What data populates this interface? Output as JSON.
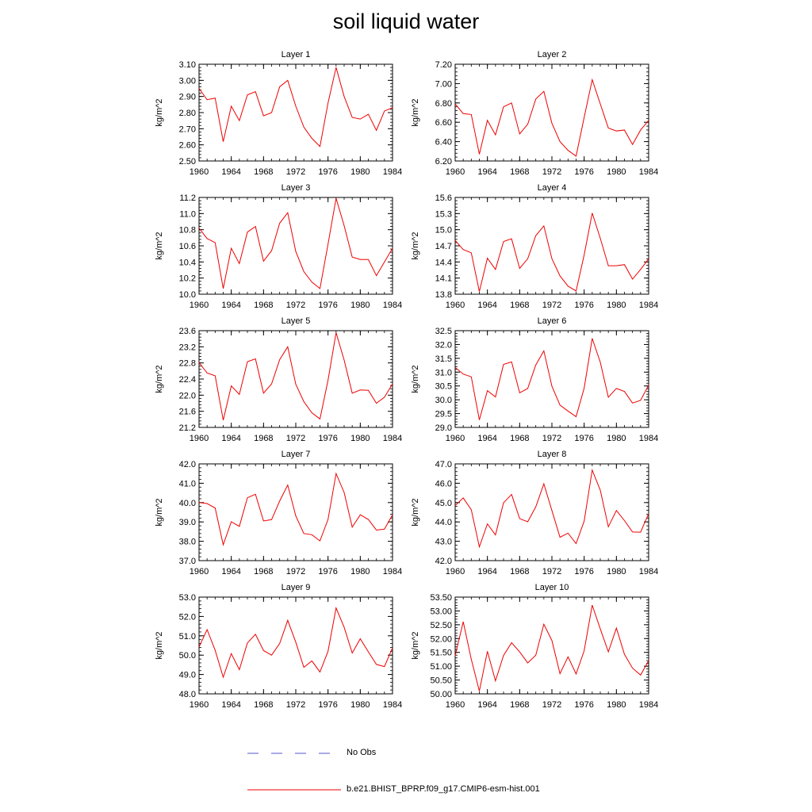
{
  "title": "soil liquid water",
  "legend": {
    "entries": [
      {
        "label": "No Obs",
        "color": "#5555cc",
        "style": "dashed"
      },
      {
        "label": "b.e21.BHIST_BPRP.f09_g17.CMIP6-esm-hist.001",
        "color": "#ee0000",
        "style": "solid"
      }
    ]
  },
  "chart_data": [
    {
      "type": "line",
      "title": "Layer 1",
      "ylabel": "kg/m^2",
      "xlabel": "",
      "xlim": [
        1960,
        1984
      ],
      "ylim": [
        2.5,
        3.1
      ],
      "yticks": [
        "2.50",
        "2.60",
        "2.70",
        "2.80",
        "2.90",
        "3.00",
        "3.10"
      ],
      "xticks": [
        "1960",
        "1964",
        "1968",
        "1972",
        "1976",
        "1980",
        "1984"
      ],
      "series": [
        {
          "name": "b.e21.BHIST_BPRP.f09_g17.CMIP6-esm-hist.001",
          "color": "#ee0000",
          "x": [
            1960,
            1961,
            1962,
            1963,
            1964,
            1965,
            1966,
            1967,
            1968,
            1969,
            1970,
            1971,
            1972,
            1973,
            1974,
            1975,
            1976,
            1977,
            1978,
            1979,
            1980,
            1981,
            1982,
            1983,
            1984
          ],
          "values": [
            2.95,
            2.88,
            2.89,
            2.62,
            2.84,
            2.75,
            2.91,
            2.93,
            2.78,
            2.8,
            2.96,
            3.0,
            2.84,
            2.71,
            2.64,
            2.59,
            2.86,
            3.08,
            2.9,
            2.77,
            2.76,
            2.79,
            2.69,
            2.81,
            2.83
          ]
        }
      ]
    },
    {
      "type": "line",
      "title": "Layer 2",
      "ylabel": "kg/m^2",
      "xlabel": "",
      "xlim": [
        1960,
        1984
      ],
      "ylim": [
        6.2,
        7.2
      ],
      "yticks": [
        "6.20",
        "6.40",
        "6.60",
        "6.80",
        "7.00",
        "7.20"
      ],
      "xticks": [
        "1960",
        "1964",
        "1968",
        "1972",
        "1976",
        "1980",
        "1984"
      ],
      "series": [
        {
          "name": "b.e21.BHIST_BPRP.f09_g17.CMIP6-esm-hist.001",
          "color": "#ee0000",
          "x": [
            1960,
            1961,
            1962,
            1963,
            1964,
            1965,
            1966,
            1967,
            1968,
            1969,
            1970,
            1971,
            1972,
            1973,
            1974,
            1975,
            1976,
            1977,
            1978,
            1979,
            1980,
            1981,
            1982,
            1983,
            1984
          ],
          "values": [
            6.79,
            6.69,
            6.68,
            6.27,
            6.62,
            6.47,
            6.76,
            6.8,
            6.48,
            6.58,
            6.84,
            6.92,
            6.59,
            6.4,
            6.31,
            6.25,
            6.65,
            7.04,
            6.79,
            6.54,
            6.51,
            6.52,
            6.37,
            6.52,
            6.62
          ]
        }
      ]
    },
    {
      "type": "line",
      "title": "Layer 3",
      "ylabel": "kg/m^2",
      "xlabel": "",
      "xlim": [
        1960,
        1984
      ],
      "ylim": [
        10.0,
        11.2
      ],
      "yticks": [
        "10.0",
        "10.2",
        "10.4",
        "10.6",
        "10.8",
        "11.0",
        "11.2"
      ],
      "xticks": [
        "1960",
        "1964",
        "1968",
        "1972",
        "1976",
        "1980",
        "1984"
      ],
      "series": [
        {
          "name": "b.e21.BHIST_BPRP.f09_g17.CMIP6-esm-hist.001",
          "color": "#ee0000",
          "x": [
            1960,
            1961,
            1962,
            1963,
            1964,
            1965,
            1966,
            1967,
            1968,
            1969,
            1970,
            1971,
            1972,
            1973,
            1974,
            1975,
            1976,
            1977,
            1978,
            1979,
            1980,
            1981,
            1982,
            1983,
            1984
          ],
          "values": [
            10.82,
            10.69,
            10.64,
            10.07,
            10.57,
            10.38,
            10.77,
            10.84,
            10.41,
            10.54,
            10.88,
            11.01,
            10.53,
            10.28,
            10.15,
            10.07,
            10.62,
            11.19,
            10.85,
            10.46,
            10.43,
            10.43,
            10.23,
            10.4,
            10.57
          ]
        }
      ]
    },
    {
      "type": "line",
      "title": "Layer 4",
      "ylabel": "kg/m^2",
      "xlabel": "",
      "xlim": [
        1960,
        1984
      ],
      "ylim": [
        13.8,
        15.6
      ],
      "yticks": [
        "13.8",
        "14.1",
        "14.4",
        "14.7",
        "15.0",
        "15.3",
        "15.6"
      ],
      "xticks": [
        "1960",
        "1964",
        "1968",
        "1972",
        "1976",
        "1980",
        "1984"
      ],
      "series": [
        {
          "name": "b.e21.BHIST_BPRP.f09_g17.CMIP6-esm-hist.001",
          "color": "#ee0000",
          "x": [
            1960,
            1961,
            1962,
            1963,
            1964,
            1965,
            1966,
            1967,
            1968,
            1969,
            1970,
            1971,
            1972,
            1973,
            1974,
            1975,
            1976,
            1977,
            1978,
            1979,
            1980,
            1981,
            1982,
            1983,
            1984
          ],
          "values": [
            14.8,
            14.63,
            14.57,
            13.85,
            14.47,
            14.26,
            14.78,
            14.83,
            14.28,
            14.46,
            14.89,
            15.07,
            14.46,
            14.14,
            13.95,
            13.86,
            14.53,
            15.31,
            14.84,
            14.33,
            14.33,
            14.35,
            14.08,
            14.26,
            14.46
          ]
        }
      ]
    },
    {
      "type": "line",
      "title": "Layer 5",
      "ylabel": "kg/m^2",
      "xlabel": "",
      "xlim": [
        1960,
        1984
      ],
      "ylim": [
        21.2,
        23.6
      ],
      "yticks": [
        "21.2",
        "21.6",
        "22.0",
        "22.4",
        "22.8",
        "23.2",
        "23.6"
      ],
      "xticks": [
        "1960",
        "1964",
        "1968",
        "1972",
        "1976",
        "1980",
        "1984"
      ],
      "series": [
        {
          "name": "b.e21.BHIST_BPRP.f09_g17.CMIP6-esm-hist.001",
          "color": "#ee0000",
          "x": [
            1960,
            1961,
            1962,
            1963,
            1964,
            1965,
            1966,
            1967,
            1968,
            1969,
            1970,
            1971,
            1972,
            1973,
            1974,
            1975,
            1976,
            1977,
            1978,
            1979,
            1980,
            1981,
            1982,
            1983,
            1984
          ],
          "values": [
            22.81,
            22.55,
            22.48,
            21.38,
            22.23,
            22.02,
            22.83,
            22.9,
            22.05,
            22.28,
            22.88,
            23.2,
            22.27,
            21.84,
            21.56,
            21.41,
            22.37,
            23.55,
            22.87,
            22.05,
            22.13,
            22.12,
            21.8,
            21.95,
            22.28
          ]
        }
      ]
    },
    {
      "type": "line",
      "title": "Layer 6",
      "ylabel": "kg/m^2",
      "xlabel": "",
      "xlim": [
        1960,
        1984
      ],
      "ylim": [
        29.0,
        32.5
      ],
      "yticks": [
        "29.0",
        "29.5",
        "30.0",
        "30.5",
        "31.0",
        "31.5",
        "32.0",
        "32.5"
      ],
      "xticks": [
        "1960",
        "1964",
        "1968",
        "1972",
        "1976",
        "1980",
        "1984"
      ],
      "series": [
        {
          "name": "b.e21.BHIST_BPRP.f09_g17.CMIP6-esm-hist.001",
          "color": "#ee0000",
          "x": [
            1960,
            1961,
            1962,
            1963,
            1964,
            1965,
            1966,
            1967,
            1968,
            1969,
            1970,
            1971,
            1972,
            1973,
            1974,
            1975,
            1976,
            1977,
            1978,
            1979,
            1980,
            1981,
            1982,
            1983,
            1984
          ],
          "values": [
            31.17,
            30.93,
            30.83,
            29.27,
            30.33,
            30.1,
            31.28,
            31.37,
            30.25,
            30.41,
            31.26,
            31.77,
            30.49,
            29.81,
            29.59,
            29.39,
            30.42,
            32.22,
            31.36,
            30.09,
            30.41,
            30.3,
            29.88,
            29.98,
            30.53
          ]
        }
      ]
    },
    {
      "type": "line",
      "title": "Layer 7",
      "ylabel": "kg/m^2",
      "xlabel": "",
      "xlim": [
        1960,
        1984
      ],
      "ylim": [
        37.0,
        42.0
      ],
      "yticks": [
        "37.0",
        "38.0",
        "39.0",
        "40.0",
        "41.0",
        "42.0"
      ],
      "xticks": [
        "1960",
        "1964",
        "1968",
        "1972",
        "1976",
        "1980",
        "1984"
      ],
      "series": [
        {
          "name": "b.e21.BHIST_BPRP.f09_g17.CMIP6-esm-hist.001",
          "color": "#ee0000",
          "x": [
            1960,
            1961,
            1962,
            1963,
            1964,
            1965,
            1966,
            1967,
            1968,
            1969,
            1970,
            1971,
            1972,
            1973,
            1974,
            1975,
            1976,
            1977,
            1978,
            1979,
            1980,
            1981,
            1982,
            1983,
            1984
          ],
          "values": [
            40.0,
            39.95,
            39.72,
            37.82,
            39.01,
            38.77,
            40.25,
            40.43,
            39.05,
            39.12,
            40.08,
            40.91,
            39.31,
            38.4,
            38.34,
            38.02,
            39.13,
            41.5,
            40.52,
            38.73,
            39.37,
            39.13,
            38.58,
            38.63,
            39.37
          ]
        }
      ]
    },
    {
      "type": "line",
      "title": "Layer 8",
      "ylabel": "kg/m^2",
      "xlabel": "",
      "xlim": [
        1960,
        1984
      ],
      "ylim": [
        42.0,
        47.0
      ],
      "yticks": [
        "42.0",
        "43.0",
        "44.0",
        "45.0",
        "46.0",
        "47.0"
      ],
      "xticks": [
        "1960",
        "1964",
        "1968",
        "1972",
        "1976",
        "1980",
        "1984"
      ],
      "series": [
        {
          "name": "b.e21.BHIST_BPRP.f09_g17.CMIP6-esm-hist.001",
          "color": "#ee0000",
          "x": [
            1960,
            1961,
            1962,
            1963,
            1964,
            1965,
            1966,
            1967,
            1968,
            1969,
            1970,
            1971,
            1972,
            1973,
            1974,
            1975,
            1976,
            1977,
            1978,
            1979,
            1980,
            1981,
            1982,
            1983,
            1984
          ],
          "values": [
            44.84,
            45.24,
            44.63,
            42.71,
            43.9,
            43.33,
            44.99,
            45.42,
            44.17,
            44.01,
            44.78,
            45.97,
            44.59,
            43.21,
            43.42,
            42.88,
            44.04,
            46.68,
            45.64,
            43.75,
            44.59,
            44.07,
            43.48,
            43.47,
            44.43
          ]
        }
      ]
    },
    {
      "type": "line",
      "title": "Layer 9",
      "ylabel": "kg/m^2",
      "xlabel": "",
      "xlim": [
        1960,
        1984
      ],
      "ylim": [
        48.0,
        53.0
      ],
      "yticks": [
        "48.0",
        "49.0",
        "50.0",
        "51.0",
        "52.0",
        "53.0"
      ],
      "xticks": [
        "1960",
        "1964",
        "1968",
        "1972",
        "1976",
        "1980",
        "1984"
      ],
      "series": [
        {
          "name": "b.e21.BHIST_BPRP.f09_g17.CMIP6-esm-hist.001",
          "color": "#ee0000",
          "x": [
            1960,
            1961,
            1962,
            1963,
            1964,
            1965,
            1966,
            1967,
            1968,
            1969,
            1970,
            1971,
            1972,
            1973,
            1974,
            1975,
            1976,
            1977,
            1978,
            1979,
            1980,
            1981,
            1982,
            1983,
            1984
          ],
          "values": [
            50.42,
            51.32,
            50.25,
            48.86,
            50.08,
            49.25,
            50.63,
            51.08,
            50.24,
            50.0,
            50.6,
            51.8,
            50.67,
            49.37,
            49.7,
            49.13,
            50.2,
            52.44,
            51.44,
            50.11,
            50.85,
            50.17,
            49.52,
            49.41,
            50.38
          ]
        }
      ]
    },
    {
      "type": "line",
      "title": "Layer 10",
      "ylabel": "kg/m^2",
      "xlabel": "",
      "xlim": [
        1960,
        1984
      ],
      "ylim": [
        50.0,
        53.5
      ],
      "yticks": [
        "50.00",
        "50.50",
        "51.00",
        "51.50",
        "52.00",
        "52.50",
        "53.00",
        "53.50"
      ],
      "xticks": [
        "1960",
        "1964",
        "1968",
        "1972",
        "1976",
        "1980",
        "1984"
      ],
      "series": [
        {
          "name": "b.e21.BHIST_BPRP.f09_g17.CMIP6-esm-hist.001",
          "color": "#ee0000",
          "x": [
            1960,
            1961,
            1962,
            1963,
            1964,
            1965,
            1966,
            1967,
            1968,
            1969,
            1970,
            1971,
            1972,
            1973,
            1974,
            1975,
            1976,
            1977,
            1978,
            1979,
            1980,
            1981,
            1982,
            1983,
            1984
          ],
          "values": [
            51.38,
            52.61,
            51.25,
            50.1,
            51.54,
            50.47,
            51.39,
            51.85,
            51.52,
            51.12,
            51.4,
            52.52,
            51.93,
            50.73,
            51.34,
            50.72,
            51.56,
            53.21,
            52.35,
            51.52,
            52.38,
            51.43,
            50.93,
            50.68,
            51.2
          ]
        }
      ]
    }
  ]
}
